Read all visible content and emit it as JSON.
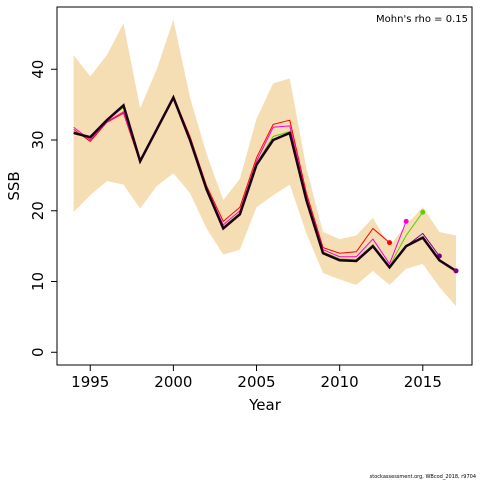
{
  "chart_data": {
    "type": "retro",
    "xlabel": "Year",
    "ylabel": "SSB",
    "annotation": "Mohn's rho = 0.15",
    "x": [
      1994,
      1995,
      1996,
      1997,
      1998,
      1999,
      2000,
      2001,
      2002,
      2003,
      2004,
      2005,
      2006,
      2007,
      2008,
      2009,
      2010,
      2011,
      2012,
      2013,
      2014,
      2015,
      2016,
      2017
    ],
    "band": {
      "color": "#f5deb3",
      "upper": [
        42,
        39,
        42,
        46.5,
        34.5,
        40,
        47,
        36,
        28,
        21.5,
        24.5,
        33,
        38,
        38.7,
        26,
        17,
        16,
        16.5,
        19,
        15,
        18,
        20.5,
        17,
        16.5
      ],
      "lower": [
        19.8,
        22.2,
        24.2,
        23.7,
        20.3,
        23.5,
        25.3,
        22.5,
        17.5,
        13.8,
        14.5,
        20.5,
        22.2,
        23.7,
        16.8,
        11.2,
        10.3,
        9.5,
        11.5,
        9.5,
        11.8,
        12.5,
        9.2,
        6.5
      ]
    },
    "series": [
      {
        "color": "#ff0000",
        "values": [
          31.5,
          29.8,
          32.5,
          33.8,
          26.8,
          31.5,
          36.2,
          30.5,
          23.5,
          18.5,
          20.5,
          27.5,
          32.2,
          32.8,
          22.5,
          14.8,
          14,
          14.2,
          17.5,
          15.5,
          null,
          null,
          null,
          null
        ]
      },
      {
        "color": "#ff00cc",
        "values": [
          31.8,
          30,
          32.6,
          34,
          27,
          31.6,
          36.2,
          30.3,
          23.2,
          18,
          20,
          27,
          31.8,
          32,
          22,
          14.5,
          13.5,
          13.5,
          16,
          12.5,
          18.5,
          null,
          null,
          null
        ]
      },
      {
        "color": "#66cc00",
        "values": [
          31.2,
          30.3,
          32.8,
          34.6,
          27,
          31.5,
          36,
          30,
          23,
          17.7,
          19.7,
          26.7,
          30.5,
          31.2,
          21.7,
          14.2,
          13.2,
          13.1,
          15.2,
          12.2,
          16.5,
          19.8,
          null,
          null
        ]
      },
      {
        "color": "#7f007f",
        "values": [
          31,
          30.4,
          32.8,
          34.9,
          27,
          31.5,
          36,
          30,
          23,
          17.5,
          19.5,
          26.5,
          30,
          31,
          21.5,
          14,
          13,
          12.9,
          15,
          12,
          15,
          16.8,
          13.6,
          null
        ]
      },
      {
        "color": "#1a0014",
        "values": [
          31,
          30.4,
          32.8,
          34.9,
          27,
          31.5,
          36,
          30,
          23,
          17.5,
          19.5,
          26.5,
          30,
          31,
          21.5,
          14,
          13,
          12.9,
          15,
          12,
          15,
          16.2,
          13,
          11.5
        ]
      }
    ],
    "xlim": [
      1993.0,
      2017.96
    ],
    "ylim": [
      -1.8,
      48.8
    ],
    "xticks": [
      1995,
      2000,
      2005,
      2010,
      2015
    ],
    "yticks": [
      0,
      10,
      20,
      30,
      40
    ]
  },
  "footer": "stockassessment.org, WBcod_2018, r9704"
}
